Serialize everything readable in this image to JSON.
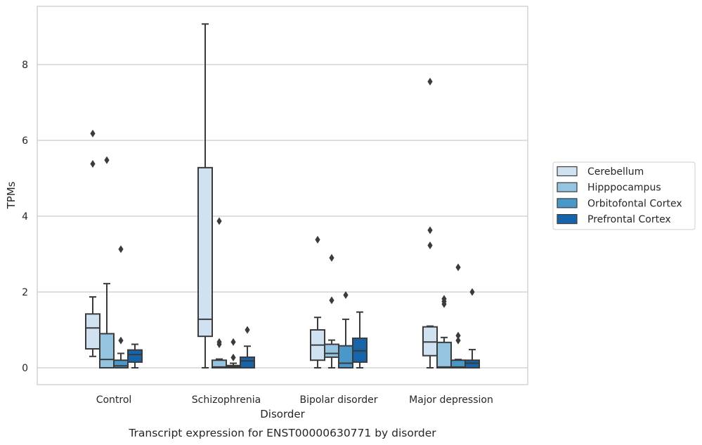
{
  "chart_data": {
    "type": "box",
    "caption": "Transcript expression for ENST00000630771 by disorder",
    "xlabel": "Disorder",
    "ylabel": "TPMs",
    "ylim": [
      -0.45,
      9.65
    ],
    "yticks": [
      0,
      2,
      4,
      6,
      8
    ],
    "grid": "horizontal",
    "legend_position": "right",
    "categories": [
      "Control",
      "Schizophrenia",
      "Bipolar disorder",
      "Major depression"
    ],
    "series": [
      {
        "name": "Cerebellum",
        "color": "#d0e1f2",
        "boxes": [
          {
            "whisker_low": 0.3,
            "q1": 0.5,
            "median": 1.05,
            "q3": 1.42,
            "whisker_high": 1.87,
            "outliers": [
              5.38,
              6.18
            ]
          },
          {
            "whisker_low": 0.0,
            "q1": 0.83,
            "median": 1.28,
            "q3": 5.28,
            "whisker_high": 9.07,
            "outliers": []
          },
          {
            "whisker_low": 0.0,
            "q1": 0.2,
            "median": 0.6,
            "q3": 1.0,
            "whisker_high": 1.33,
            "outliers": [
              3.38
            ]
          },
          {
            "whisker_low": 0.0,
            "q1": 0.32,
            "median": 0.68,
            "q3": 1.08,
            "whisker_high": 1.1,
            "outliers": [
              3.23,
              3.63,
              7.55
            ]
          }
        ]
      },
      {
        "name": "Hipppocampus",
        "color": "#94c4df",
        "boxes": [
          {
            "whisker_low": 0.0,
            "q1": 0.0,
            "median": 0.22,
            "q3": 0.9,
            "whisker_high": 2.22,
            "outliers": [
              5.48
            ]
          },
          {
            "whisker_low": 0.0,
            "q1": 0.0,
            "median": 0.02,
            "q3": 0.2,
            "whisker_high": 0.23,
            "outliers": [
              0.62,
              0.68,
              3.87
            ]
          },
          {
            "whisker_low": 0.0,
            "q1": 0.28,
            "median": 0.38,
            "q3": 0.62,
            "whisker_high": 0.73,
            "outliers": [
              1.78,
              2.9
            ]
          },
          {
            "whisker_low": 0.0,
            "q1": 0.0,
            "median": 0.02,
            "q3": 0.67,
            "whisker_high": 0.8,
            "outliers": [
              1.68,
              1.75,
              1.82
            ]
          }
        ]
      },
      {
        "name": "Orbitofontal Cortex",
        "color": "#4a98c9",
        "boxes": [
          {
            "whisker_low": 0.0,
            "q1": 0.0,
            "median": 0.05,
            "q3": 0.2,
            "whisker_high": 0.38,
            "outliers": [
              0.72,
              3.13
            ]
          },
          {
            "whisker_low": 0.0,
            "q1": 0.0,
            "median": 0.03,
            "q3": 0.06,
            "whisker_high": 0.12,
            "outliers": [
              0.27,
              0.68
            ]
          },
          {
            "whisker_low": 0.0,
            "q1": 0.0,
            "median": 0.12,
            "q3": 0.58,
            "whisker_high": 1.28,
            "outliers": [
              1.92
            ]
          },
          {
            "whisker_low": 0.0,
            "q1": 0.0,
            "median": 0.02,
            "q3": 0.2,
            "whisker_high": 0.22,
            "outliers": [
              0.72,
              0.85,
              2.65
            ]
          }
        ]
      },
      {
        "name": "Prefrontal Cortex",
        "color": "#1764ab",
        "boxes": [
          {
            "whisker_low": 0.0,
            "q1": 0.15,
            "median": 0.35,
            "q3": 0.47,
            "whisker_high": 0.62,
            "outliers": []
          },
          {
            "whisker_low": 0.0,
            "q1": 0.0,
            "median": 0.18,
            "q3": 0.28,
            "whisker_high": 0.57,
            "outliers": [
              1.0
            ]
          },
          {
            "whisker_low": 0.0,
            "q1": 0.15,
            "median": 0.45,
            "q3": 0.78,
            "whisker_high": 1.47,
            "outliers": []
          },
          {
            "whisker_low": 0.0,
            "q1": 0.0,
            "median": 0.12,
            "q3": 0.2,
            "whisker_high": 0.48,
            "outliers": [
              2.0
            ]
          }
        ]
      }
    ]
  }
}
